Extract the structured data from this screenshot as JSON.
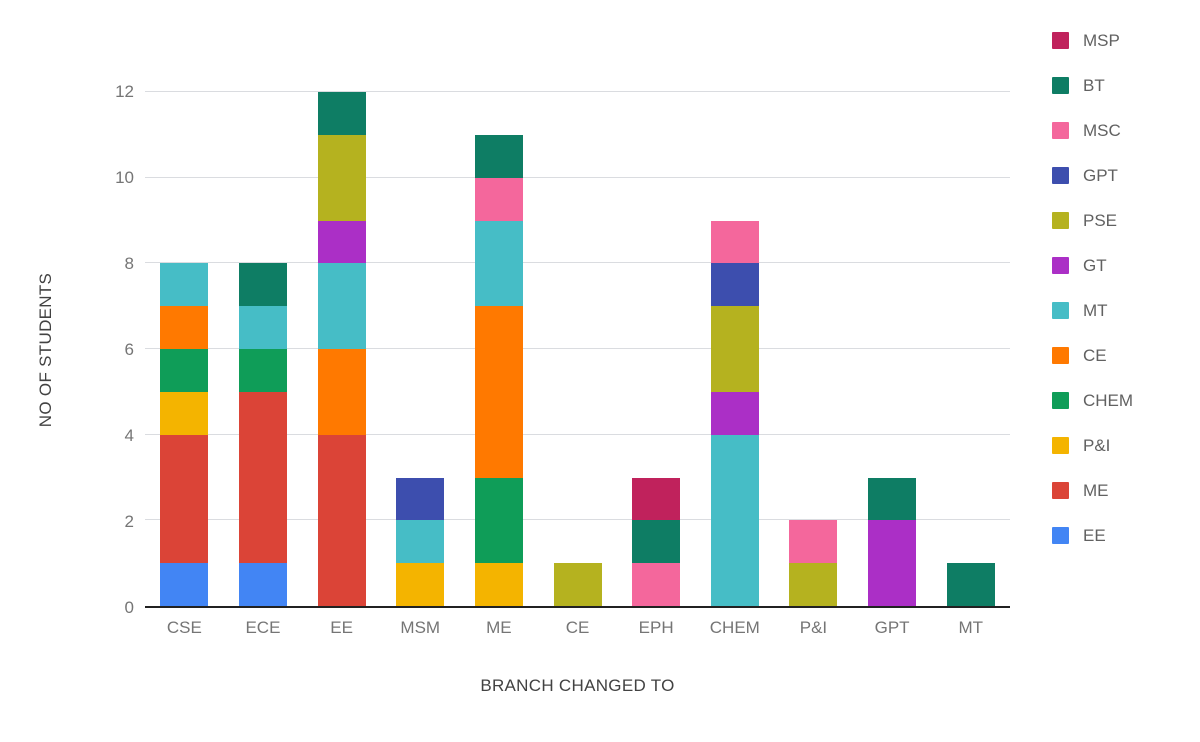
{
  "chart_data": {
    "type": "bar",
    "stacked": true,
    "title": "",
    "xlabel": "BRANCH CHANGED TO",
    "ylabel": "NO OF STUDENTS",
    "ylim": [
      0,
      12
    ],
    "yticks": [
      0,
      2,
      4,
      6,
      8,
      10,
      12
    ],
    "grid": true,
    "legend_position": "right",
    "categories": [
      "CSE",
      "ECE",
      "EE",
      "MSM",
      "ME",
      "CE",
      "EPH",
      "CHEM",
      "P&I",
      "GPT",
      "MT"
    ],
    "series": [
      {
        "name": "EE",
        "color": "#4285F4",
        "values": [
          1,
          1,
          0,
          0,
          0,
          0,
          0,
          0,
          0,
          0,
          0
        ]
      },
      {
        "name": "ME",
        "color": "#DB4437",
        "values": [
          3,
          4,
          4,
          0,
          0,
          0,
          0,
          0,
          0,
          0,
          0
        ]
      },
      {
        "name": "P&I",
        "color": "#F4B400",
        "values": [
          1,
          0,
          0,
          1,
          1,
          0,
          0,
          0,
          0,
          0,
          0
        ]
      },
      {
        "name": "CHEM",
        "color": "#0F9D58",
        "values": [
          1,
          1,
          0,
          0,
          2,
          0,
          0,
          0,
          0,
          0,
          0
        ]
      },
      {
        "name": "CE",
        "color": "#FF7900",
        "values": [
          1,
          0,
          2,
          0,
          4,
          0,
          0,
          0,
          0,
          0,
          0
        ]
      },
      {
        "name": "MT",
        "color": "#46BDC6",
        "values": [
          1,
          1,
          2,
          1,
          2,
          0,
          0,
          4,
          0,
          0,
          0
        ]
      },
      {
        "name": "GT",
        "color": "#AB2FC6",
        "values": [
          0,
          0,
          1,
          0,
          0,
          0,
          0,
          1,
          0,
          2,
          0
        ]
      },
      {
        "name": "PSE",
        "color": "#B5B21F",
        "values": [
          0,
          0,
          2,
          0,
          0,
          1,
          0,
          2,
          1,
          0,
          0
        ]
      },
      {
        "name": "GPT",
        "color": "#3D4EAE",
        "values": [
          0,
          0,
          0,
          1,
          0,
          0,
          0,
          1,
          0,
          0,
          0
        ]
      },
      {
        "name": "MSC",
        "color": "#F4679C",
        "values": [
          0,
          0,
          0,
          0,
          1,
          0,
          1,
          1,
          1,
          0,
          0
        ]
      },
      {
        "name": "BT",
        "color": "#0E7D64",
        "values": [
          0,
          1,
          1,
          0,
          1,
          0,
          1,
          0,
          0,
          1,
          1
        ]
      },
      {
        "name": "MSP",
        "color": "#C0225C",
        "values": [
          0,
          0,
          0,
          0,
          0,
          0,
          1,
          0,
          0,
          0,
          0
        ]
      }
    ],
    "legend_order": [
      "MSP",
      "BT",
      "MSC",
      "GPT",
      "PSE",
      "GT",
      "MT",
      "CE",
      "CHEM",
      "P&I",
      "ME",
      "EE"
    ]
  }
}
